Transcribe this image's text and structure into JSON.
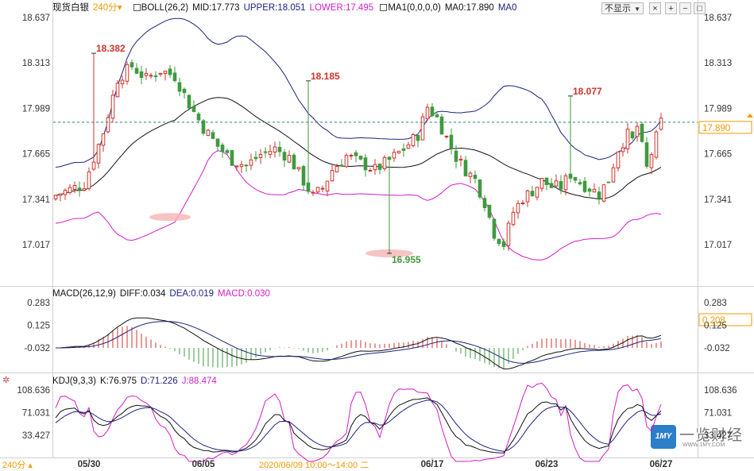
{
  "header": {
    "instrument": "现货白银",
    "period_selector": "240分",
    "boll_label": "BOLL(26,2)",
    "mid": "MID:17.773",
    "upper": "UPPER:18.051",
    "lower": "LOWER:17.495",
    "ma_label": "MA1(0,0,0,0)",
    "ma0": "MA0:17.890",
    "ma0b": "MA0"
  },
  "toolbar": {
    "hide_select": "不显示",
    "close_btn": "×",
    "add_btn": "+",
    "minus_btn": "−",
    "restore_btn": "□",
    "x_btn": "×"
  },
  "macd_header": {
    "label": "MACD(26,12,9)",
    "diff": "DIFF:0.034",
    "dea": "DEA:0.019",
    "macd": "MACD:0.030"
  },
  "kdj_header": {
    "label": "KDJ(9,3,3)",
    "k": "K:76.975",
    "d": "D:71.226",
    "j": "J:88.474"
  },
  "footer": {
    "period": "240分",
    "cursor_time": "2020/06/09 10:00～14:00 二"
  },
  "colors": {
    "up": "#d0342c",
    "down": "#3f9a3f",
    "upper": "#1a237e",
    "mid": "#111111",
    "lower": "#d41cc8",
    "k": "#111111",
    "d": "#1a237e",
    "j": "#d41cc8",
    "last_price_line": "#2a7a7a",
    "last_price_tag": "#f39800"
  },
  "chart_data": [
    {
      "type": "candlestick",
      "name": "main",
      "y_ticks": [
        "18.637",
        "18.313",
        "17.989",
        "17.665",
        "17.341",
        "17.017"
      ],
      "ylim": [
        16.87,
        18.66
      ],
      "x_ticks": [
        "05/30",
        "06/05",
        "06/17",
        "06/23",
        "06/27"
      ],
      "last_price": "17.890",
      "annotations": [
        {
          "text": "18.382",
          "price": 18.382,
          "type": "high"
        },
        {
          "text": "18.185",
          "price": 18.185,
          "type": "high"
        },
        {
          "text": "16.955",
          "price": 16.955,
          "type": "low"
        },
        {
          "text": "18.077",
          "price": 18.077,
          "type": "high"
        }
      ]
    },
    {
      "type": "line+bar",
      "name": "MACD",
      "y_ticks": [
        "0.283",
        "0.125",
        "-0.032"
      ],
      "ylim": [
        -0.25,
        0.33
      ],
      "current_tag": "0.208",
      "series": [
        "DIFF",
        "DEA",
        "MACD"
      ]
    },
    {
      "type": "line",
      "name": "KDJ",
      "y_ticks": [
        "108.636",
        "71.031",
        "33.427"
      ],
      "ylim": [
        -5,
        120
      ],
      "series": [
        "K",
        "D",
        "J"
      ]
    }
  ],
  "watermark": {
    "brand_text": "一览财经",
    "site": "WWW.1MY.COM",
    "badge": "1MY"
  }
}
